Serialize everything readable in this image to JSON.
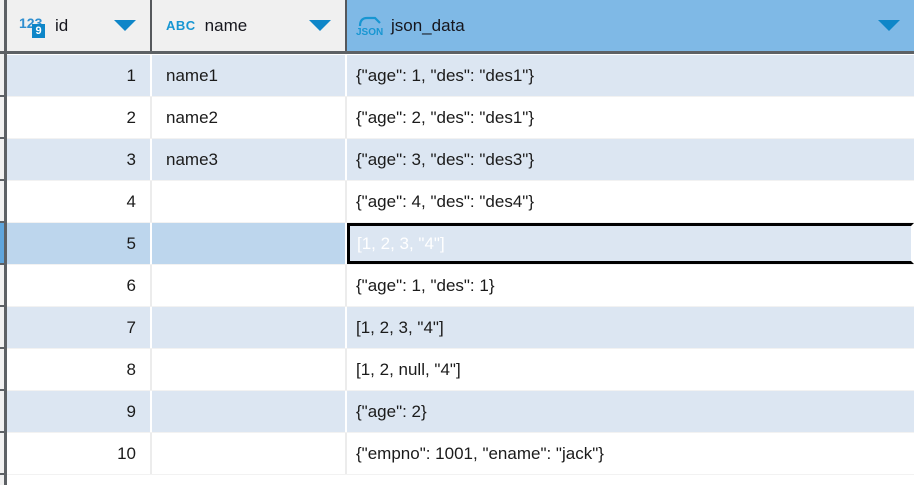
{
  "table": {
    "columns": [
      {
        "label": "id",
        "type": "number",
        "icon": "number-type-icon",
        "icon_text": "123",
        "icon_badge": "9"
      },
      {
        "label": "name",
        "type": "text",
        "icon": "text-type-icon",
        "icon_text": "ABC"
      },
      {
        "label": "json_data",
        "type": "json",
        "icon": "json-type-icon",
        "icon_text": "JSON"
      }
    ],
    "rows": [
      {
        "id": "1",
        "name": "name1",
        "json": "{\"age\": 1, \"des\": \"des1\"}"
      },
      {
        "id": "2",
        "name": "name2",
        "json": "{\"age\": 2, \"des\": \"des1\"}"
      },
      {
        "id": "3",
        "name": "name3",
        "json": "{\"age\": 3, \"des\": \"des3\"}"
      },
      {
        "id": "4",
        "name": "",
        "json": "{\"age\": 4, \"des\": \"des4\"}"
      },
      {
        "id": "5",
        "name": "",
        "json": "[1, 2, 3, \"4\"]",
        "selected": true
      },
      {
        "id": "6",
        "name": "",
        "json": "{\"age\": 1, \"des\": 1}"
      },
      {
        "id": "7",
        "name": "",
        "json": "[1, 2, 3, \"4\"]"
      },
      {
        "id": "8",
        "name": "",
        "json": "[1, 2, null, \"4\"]"
      },
      {
        "id": "9",
        "name": "",
        "json": "{\"age\": 2}"
      },
      {
        "id": "10",
        "name": "",
        "json": "{\"empno\": 1001, \"ename\": \"jack\"}"
      }
    ],
    "selected_cell": {
      "row_id": "5",
      "column": "json_data",
      "value": "[1, 2, 3, \"4\"]"
    }
  },
  "colors": {
    "header_bg": "#f0f0f0",
    "header_selected_column_bg": "#7fb9e6",
    "row_odd_bg": "#dce6f2",
    "row_even_bg": "#ffffff",
    "selected_row_bg": "#bdd6ed",
    "selected_cell_bg": "#6fade2",
    "selected_cell_text": "#ffffff",
    "selected_cell_border": "#000000",
    "grid_dark_line": "#5d6165",
    "icon_blue": "#1796d2",
    "filter_arrow_blue": "#0e86c8",
    "text": "#1b1b1b"
  }
}
